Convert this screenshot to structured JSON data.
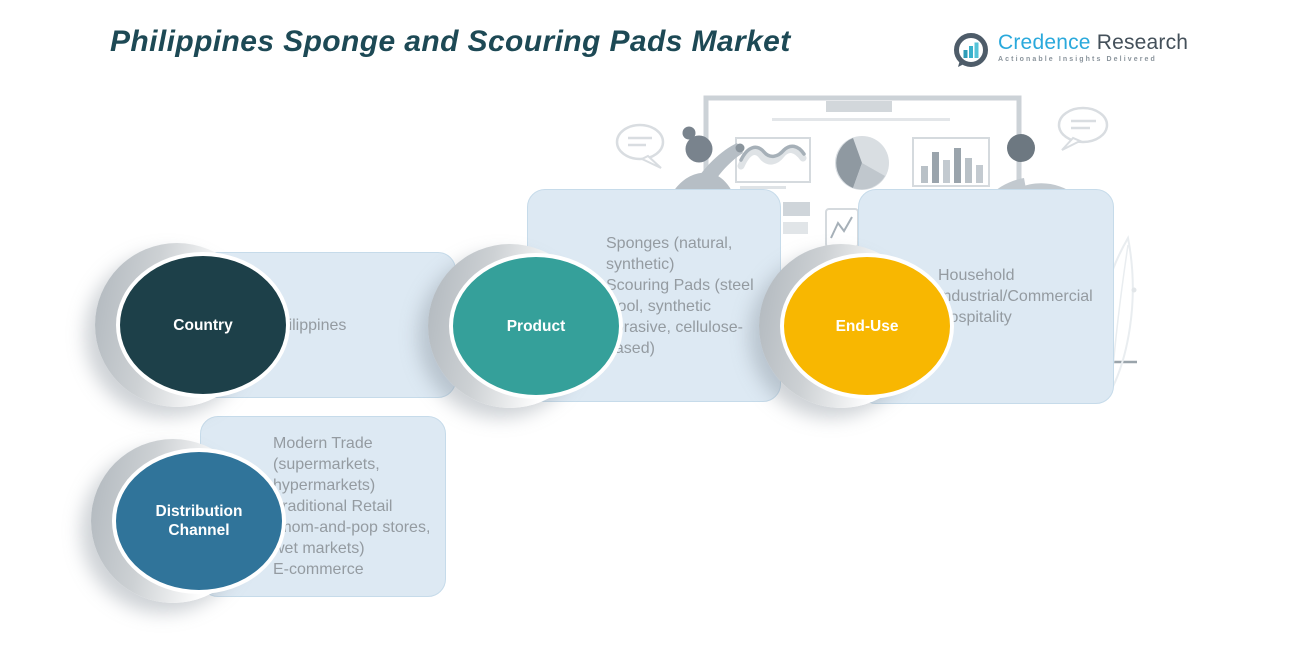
{
  "header": {
    "title": "Philippines Sponge and Scouring Pads Market"
  },
  "logo": {
    "brand_primary": "Credence",
    "brand_secondary": "Research",
    "tagline": "Actionable Insights Delivered",
    "icon": "bar-chart-speech-bubble-icon"
  },
  "colors": {
    "title_text": "#1d4955",
    "card_background": "#dde9f3",
    "card_border": "#c6dbea",
    "card_text": "#949ba1",
    "brand_primary_blue": "#2aa9dc",
    "brand_secondary_slate": "#44505a",
    "country_circle": "#1d4049",
    "product_circle": "#35a09a",
    "end_use_circle": "#f8b701",
    "distribution_circle": "#30749a"
  },
  "segments": [
    {
      "id": "country",
      "label": "Country",
      "color": "#1d4049",
      "items": [
        "Philippines"
      ]
    },
    {
      "id": "product",
      "label": "Product",
      "color": "#35a09a",
      "items": [
        "Sponges (natural, synthetic)",
        "Scouring Pads (steel wool, synthetic abrasive, cellulose-based)"
      ]
    },
    {
      "id": "end_use",
      "label": "End-Use",
      "color": "#f8b701",
      "items": [
        "Household",
        "Industrial/Commercial",
        "Hospitality"
      ]
    },
    {
      "id": "distribution_channel",
      "label": "Distribution Channel",
      "color": "#30749a",
      "items": [
        "Modern Trade (supermarkets, hypermarkets)",
        "Traditional Retail (mom-and-pop stores, wet markets)",
        "E-commerce"
      ]
    }
  ],
  "illustration": {
    "name": "people-presenting-charts"
  }
}
